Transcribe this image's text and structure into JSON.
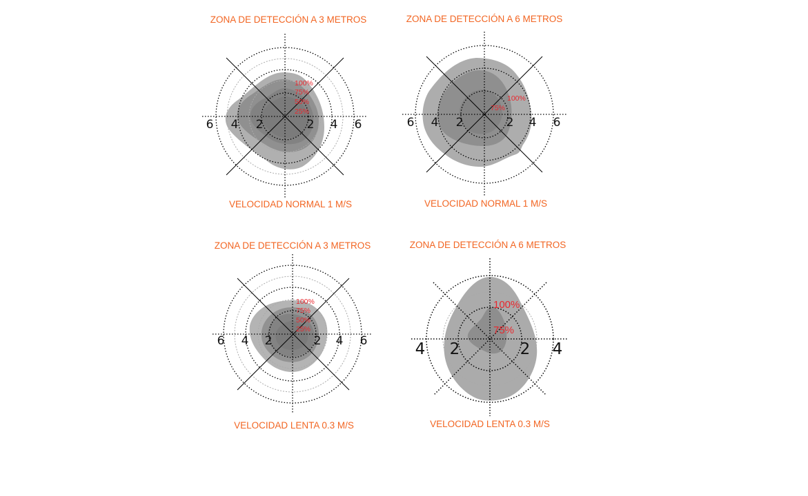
{
  "panels": [
    {
      "title": "ZONA DE DETECCIÓN A 3 METROS",
      "caption": "VELOCIDAD NORMAL 1 M/S",
      "axis_labels": [
        "6",
        "4",
        "2",
        "2",
        "4",
        "6"
      ],
      "percent_labels": [
        "100%",
        "75%",
        "50%",
        "25%"
      ]
    },
    {
      "title": "ZONA DE DETECCIÓN A 6 METROS",
      "caption": "VELOCIDAD NORMAL 1 M/S",
      "axis_labels": [
        "6",
        "4",
        "2",
        "2",
        "4",
        "6"
      ],
      "percent_labels": [
        "100%",
        "75%"
      ]
    },
    {
      "title": "ZONA DE DETECCIÓN A 3 METROS",
      "caption": "VELOCIDAD LENTA 0.3 M/S",
      "axis_labels": [
        "6",
        "4",
        "2",
        "2",
        "4",
        "6"
      ],
      "percent_labels": [
        "100%",
        "75%",
        "50%",
        "25%"
      ]
    },
    {
      "title": "ZONA DE DETECCIÓN A 6 METROS",
      "caption": "VELOCIDAD LENTA 0.3 M/S",
      "axis_labels": [
        "4",
        "2",
        "2",
        "4"
      ],
      "percent_labels": [
        "100%",
        "75%"
      ]
    }
  ],
  "colors": {
    "title": "#f26522",
    "percent": "#e8282e",
    "zone_fill": "#777777"
  }
}
